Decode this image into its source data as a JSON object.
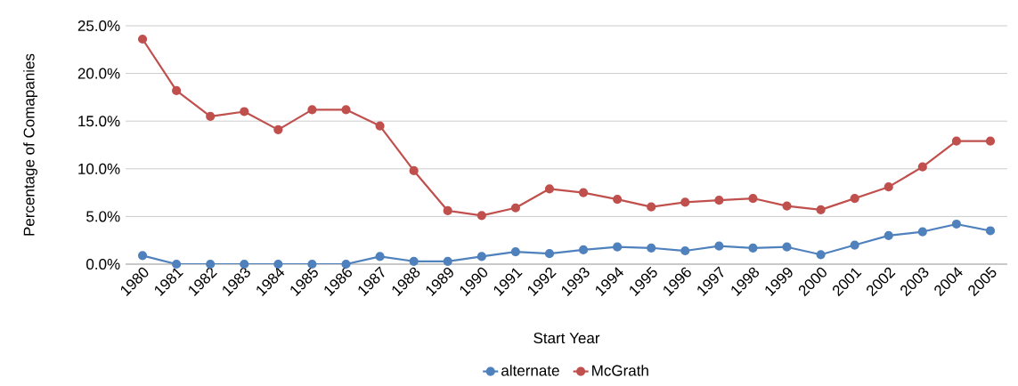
{
  "chart_data": {
    "type": "line",
    "xlabel": "Start Year",
    "ylabel": "Percentage of Comapanies",
    "categories": [
      "1980",
      "1981",
      "1982",
      "1983",
      "1984",
      "1985",
      "1986",
      "1987",
      "1988",
      "1989",
      "1990",
      "1991",
      "1992",
      "1993",
      "1994",
      "1995",
      "1996",
      "1997",
      "1998",
      "1999",
      "2000",
      "2001",
      "2002",
      "2003",
      "2004",
      "2005"
    ],
    "series": [
      {
        "name": "alternate",
        "color": "#4f81bd",
        "values": [
          0.9,
          0,
          0,
          0,
          0,
          0,
          0,
          0.8,
          0.3,
          0.3,
          0.8,
          1.3,
          1.1,
          1.5,
          1.8,
          1.7,
          1.4,
          1.9,
          1.7,
          1.8,
          1.0,
          2.0,
          3.0,
          3.4,
          4.2,
          3.5
        ]
      },
      {
        "name": "McGrath",
        "color": "#c0504d",
        "values": [
          23.6,
          18.2,
          15.5,
          16.0,
          14.1,
          16.2,
          16.2,
          14.5,
          9.8,
          5.6,
          5.1,
          5.9,
          7.9,
          7.5,
          6.8,
          6.0,
          6.5,
          6.7,
          6.9,
          6.1,
          5.7,
          6.9,
          8.1,
          10.2,
          12.9,
          12.9
        ]
      }
    ],
    "ylim": [
      0,
      25
    ],
    "yticks": [
      {
        "value": 0,
        "label": "0.0%"
      },
      {
        "value": 5,
        "label": "5.0%"
      },
      {
        "value": 10,
        "label": "10.0%"
      },
      {
        "value": 15,
        "label": "15.0%"
      },
      {
        "value": 20,
        "label": "20.0%"
      },
      {
        "value": 25,
        "label": "25.0%"
      }
    ],
    "grid": "y",
    "legend": "bottom",
    "marker": "circle",
    "line_style": "solid"
  }
}
